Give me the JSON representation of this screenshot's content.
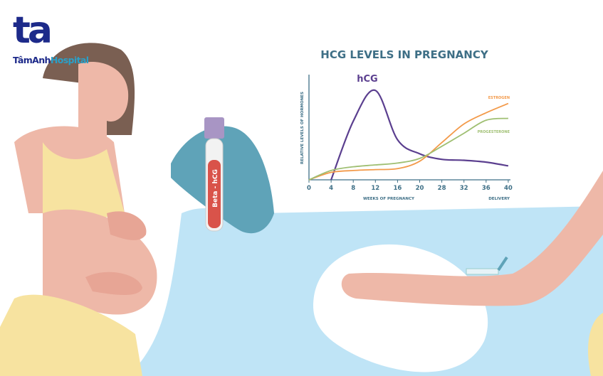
{
  "logo": {
    "mark": "ta",
    "name_part1": "TâmAnh",
    "name_part2": "Hospital",
    "brand_color": "#1d2a8a",
    "accent_color": "#2aa0c8"
  },
  "tube_label": "Beta - hCG",
  "colors": {
    "wave": "#bfe4f6",
    "skin": "#eeb8a8",
    "top": "#f7e3a0",
    "glove": "#5fa3b8",
    "blood": "#d9534a"
  },
  "chart_data": {
    "type": "line",
    "title": "HCG LEVELS IN PREGNANCY",
    "xlabel": "WEEKS OF PREGNANCY",
    "xlabel_end": "DELIVERY",
    "ylabel": "RELATIVE LEVELS OF HORMONES",
    "categories": [
      "0",
      "4",
      "8",
      "12",
      "16",
      "20",
      "28",
      "32",
      "36",
      "40"
    ],
    "y_scale": "relative, unlabeled",
    "grid": false,
    "series": [
      {
        "name": "hCG",
        "color": "#5b3f8f",
        "values": [
          null,
          0,
          63,
          96,
          43,
          28,
          22,
          21,
          19,
          15
        ]
      },
      {
        "name": "ESTROGEN",
        "color": "#f39a4a",
        "values": [
          0,
          8,
          10,
          11,
          12,
          20,
          40,
          60,
          72,
          82
        ]
      },
      {
        "name": "PROGESTERONE",
        "color": "#9fbf72",
        "values": [
          0,
          10,
          14,
          16,
          18,
          23,
          36,
          50,
          64,
          66
        ]
      }
    ]
  }
}
